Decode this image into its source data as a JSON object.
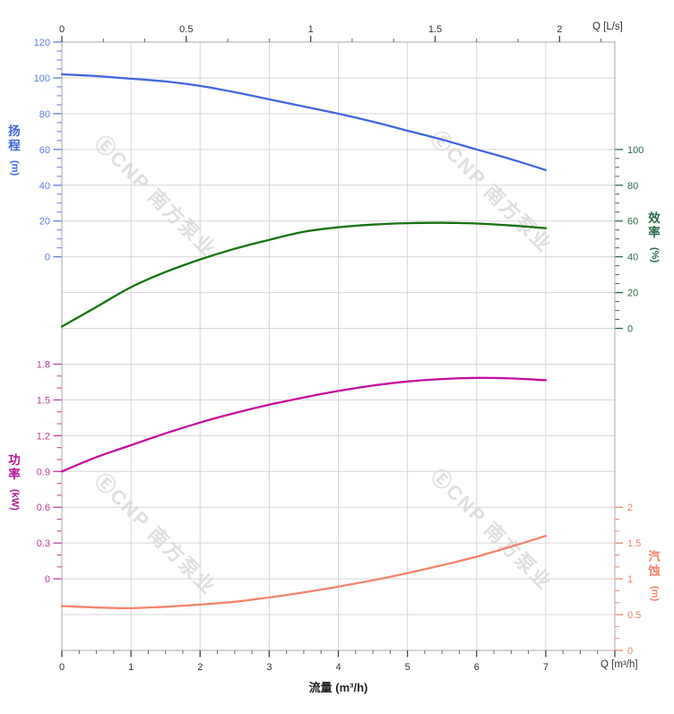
{
  "watermark": {
    "text": "ⒺCNP 南方泵业"
  },
  "chart_data": {
    "type": "line",
    "title": "",
    "x_axis_bottom": {
      "label": "Q [m³/h]",
      "title": "流量 (m³/h)",
      "ticks": [
        "0",
        "1",
        "2",
        "3",
        "4",
        "5",
        "6",
        "7"
      ],
      "range": [
        0,
        8
      ]
    },
    "x_axis_top": {
      "label": "Q [L/s]",
      "ticks": [
        "0",
        "0.5",
        "1",
        "1.5",
        "2"
      ],
      "range": [
        0,
        2.222
      ]
    },
    "y_axes": {
      "head": {
        "title": "扬程",
        "unit": "(m)",
        "ticks": [
          "120",
          "100",
          "80",
          "60",
          "40",
          "20",
          "0"
        ],
        "range": [
          120,
          0
        ],
        "label_color": "#5b7de0",
        "title_color": "#3f66dd"
      },
      "efficiency": {
        "title": "效率",
        "unit": "(%)",
        "ticks": [
          "100",
          "80",
          "60",
          "40",
          "20",
          "0"
        ],
        "range": [
          100,
          0
        ],
        "label_color": "#2e6b4a",
        "title_color": "#2e6b4a"
      },
      "power": {
        "title": "功率",
        "unit": "(kW)",
        "ticks": [
          "1.8",
          "1.5",
          "1.2",
          "0.9",
          "0.6",
          "0.3",
          "0"
        ],
        "range": [
          1.8,
          0
        ],
        "label_color": "#c13a9f",
        "title_color": "#b3169b"
      },
      "npsh": {
        "title": "汽蚀",
        "unit": "(m)",
        "ticks": [
          "2",
          "1.5",
          "1",
          "0.5",
          "0"
        ],
        "range": [
          2,
          0
        ],
        "label_color": "#f4836b",
        "title_color": "#f4836b"
      }
    },
    "series": [
      {
        "name": "扬程",
        "axis": "head",
        "unit": "m",
        "color": "#4267dd",
        "x": [
          0,
          0.5,
          1,
          1.5,
          2,
          2.5,
          3,
          3.5,
          4,
          4.5,
          5,
          5.5,
          6,
          6.5,
          7
        ],
        "values": [
          102,
          101,
          99.5,
          98,
          95.5,
          92,
          88,
          84,
          80,
          75.5,
          70.5,
          65.5,
          60,
          54.5,
          48.5
        ]
      },
      {
        "name": "效率",
        "axis": "efficiency",
        "unit": "%",
        "color": "#15720f",
        "x": [
          0,
          0.5,
          1,
          1.5,
          2,
          2.5,
          3,
          3.5,
          4,
          4.5,
          5,
          5.5,
          6,
          6.5,
          7
        ],
        "values": [
          1,
          12,
          23,
          31.5,
          38.5,
          44.5,
          49.5,
          54,
          56.5,
          58,
          58.8,
          59,
          58.6,
          57.5,
          56
        ]
      },
      {
        "name": "功率",
        "axis": "power",
        "unit": "kW",
        "color": "#c40e9d",
        "x": [
          0,
          0.5,
          1,
          1.5,
          2,
          2.5,
          3,
          3.5,
          4,
          4.5,
          5,
          5.5,
          6,
          6.5,
          7
        ],
        "values": [
          0.9,
          1.02,
          1.12,
          1.22,
          1.31,
          1.39,
          1.46,
          1.52,
          1.575,
          1.62,
          1.655,
          1.675,
          1.685,
          1.68,
          1.665
        ]
      },
      {
        "name": "汽蚀",
        "axis": "npsh",
        "unit": "m",
        "color": "#f4836b",
        "x": [
          0,
          0.5,
          1,
          1.5,
          2,
          2.5,
          3,
          3.5,
          4,
          4.5,
          5,
          5.5,
          6,
          6.5,
          7
        ],
        "values": [
          0.62,
          0.6,
          0.59,
          0.61,
          0.64,
          0.68,
          0.74,
          0.81,
          0.89,
          0.98,
          1.08,
          1.19,
          1.31,
          1.45,
          1.6
        ]
      }
    ],
    "grid": "on",
    "legend": "none"
  }
}
